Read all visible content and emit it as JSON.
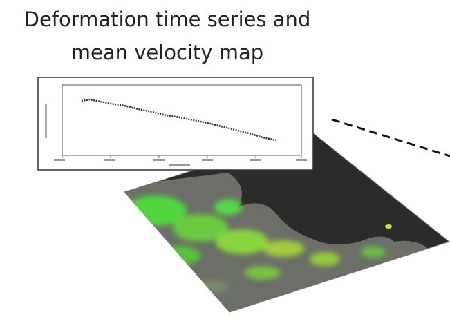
{
  "title": {
    "lines": [
      "Deformation time series and",
      "mean velocity map"
    ]
  }
}
